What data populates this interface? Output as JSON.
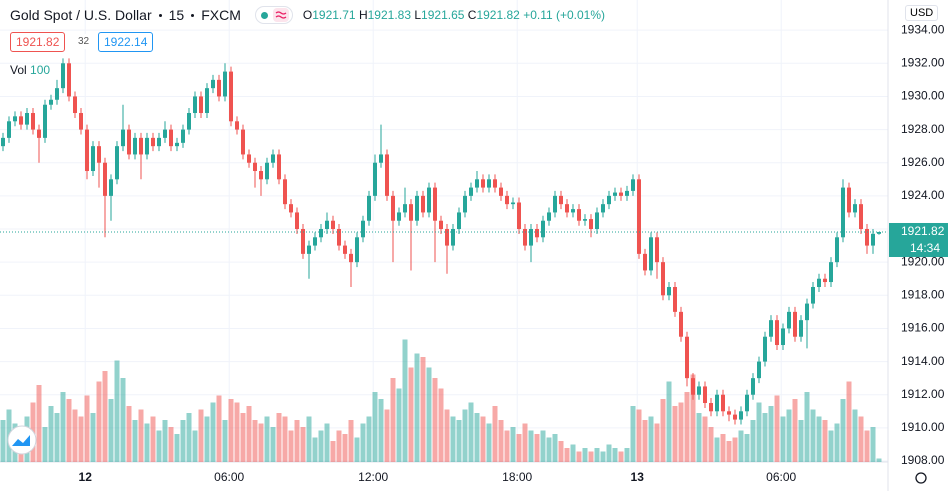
{
  "header": {
    "title": "Gold Spot / U.S. Dollar",
    "interval": "15",
    "source": "FXCM",
    "ohlc_labels": [
      "O",
      "H",
      "L",
      "C"
    ],
    "change": "+0.11 (+0.01%)",
    "spread": "32",
    "buy": 1922.14,
    "volume_label": "Vol",
    "currency": "USD",
    "countdown": "14:34"
  },
  "chart_data": {
    "type": "candlestick",
    "up_color": "#26a69a",
    "down_color": "#ef5350",
    "xlim": [
      -0.5,
      147
    ],
    "xticks": [
      {
        "value": 13.7,
        "label": "12"
      },
      {
        "value": 37.7,
        "label": "06:00"
      },
      {
        "value": 61.7,
        "label": "12:00"
      },
      {
        "value": 85.7,
        "label": "18:00"
      },
      {
        "value": 105.7,
        "label": "13"
      },
      {
        "value": 129.7,
        "label": "06:00"
      }
    ],
    "ylim": [
      1907.94,
      1935.82
    ],
    "yticks": [
      {
        "value": 1908,
        "label": "1908.00"
      },
      {
        "value": 1910,
        "label": "1910.00"
      },
      {
        "value": 1912,
        "label": "1912.00"
      },
      {
        "value": 1914,
        "label": "1914.00"
      },
      {
        "value": 1916,
        "label": "1916.00"
      },
      {
        "value": 1918,
        "label": "1918.00"
      },
      {
        "value": 1920,
        "label": "1920.00"
      },
      {
        "value": 1922,
        "label": "1922.00"
      },
      {
        "value": 1924,
        "label": "1924.00"
      },
      {
        "value": 1926,
        "label": "1926.00"
      },
      {
        "value": 1928,
        "label": "1928.00"
      },
      {
        "value": 1930,
        "label": "1930.00"
      },
      {
        "value": 1932,
        "label": "1932.00"
      },
      {
        "value": 1934,
        "label": "1934.00"
      }
    ],
    "grid": true,
    "vlim": [
      0,
      4000
    ],
    "open": [
      1927.0,
      1927.5,
      1928.5,
      1928.8,
      1928.3,
      1929.0,
      1928.0,
      1927.5,
      1929.5,
      1929.8,
      1930.5,
      1932.0,
      1930.0,
      1929.0,
      1928.0,
      1925.5,
      1927.0,
      1926.0,
      1924.0,
      1925.0,
      1927.0,
      1928.0,
      1926.5,
      1927.5,
      1926.5,
      1927.5,
      1927.0,
      1927.5,
      1928.0,
      1927.0,
      1927.2,
      1928.0,
      1929.0,
      1930.0,
      1929.0,
      1930.5,
      1931.0,
      1930.0,
      1931.5,
      1928.5,
      1928.0,
      1926.5,
      1926.0,
      1925.5,
      1925.0,
      1926.0,
      1926.5,
      1925.0,
      1923.5,
      1923.0,
      1922.0,
      1920.5,
      1921.0,
      1921.5,
      1922.0,
      1922.5,
      1922.0,
      1921.0,
      1920.5,
      1920.0,
      1921.5,
      1922.5,
      1924.0,
      1926.0,
      1926.5,
      1924.0,
      1922.5,
      1923.0,
      1923.5,
      1922.5,
      1924.0,
      1923.0,
      1924.5,
      1922.5,
      1922.0,
      1921.0,
      1922.0,
      1923.0,
      1924.0,
      1924.5,
      1925.0,
      1924.5,
      1925.0,
      1924.5,
      1924.0,
      1923.5,
      1923.6,
      1922.0,
      1921.0,
      1922.0,
      1921.5,
      1922.5,
      1923.0,
      1924.0,
      1923.5,
      1923.0,
      1923.2,
      1922.5,
      1922.6,
      1922.0,
      1923.0,
      1923.5,
      1924.0,
      1924.2,
      1924.0,
      1924.3,
      1925.0,
      1920.5,
      1919.5,
      1921.5,
      1920.0,
      1918.0,
      1918.5,
      1917.0,
      1915.5,
      1913.0,
      1912.0,
      1912.5,
      1911.5,
      1911.0,
      1912.0,
      1911.0,
      1910.8,
      1910.5,
      1911.0,
      1912.0,
      1913.0,
      1914.0,
      1915.5,
      1916.5,
      1915.0,
      1916.0,
      1917.0,
      1915.5,
      1916.5,
      1917.5,
      1918.5,
      1919.0,
      1918.8,
      1920.0,
      1921.5,
      1924.5,
      1923.0,
      1923.5,
      1922.0,
      1921.0,
      1921.71
    ],
    "high": [
      1927.8,
      1928.8,
      1929.1,
      1929.1,
      1929.3,
      1929.3,
      1928.3,
      1929.8,
      1930.1,
      1931.0,
      1932.3,
      1932.3,
      1930.3,
      1929.3,
      1928.3,
      1927.3,
      1927.3,
      1926.3,
      1925.3,
      1927.3,
      1929.5,
      1928.3,
      1927.8,
      1927.8,
      1927.8,
      1927.8,
      1927.8,
      1928.5,
      1928.3,
      1927.5,
      1928.3,
      1929.3,
      1930.3,
      1930.3,
      1930.8,
      1931.3,
      1931.3,
      1932.0,
      1931.8,
      1928.8,
      1928.3,
      1926.8,
      1926.3,
      1925.8,
      1926.3,
      1926.8,
      1926.8,
      1925.3,
      1923.8,
      1923.3,
      1922.3,
      1921.3,
      1921.8,
      1922.3,
      1923.0,
      1922.8,
      1922.3,
      1921.3,
      1920.8,
      1921.8,
      1922.8,
      1924.3,
      1926.5,
      1928.3,
      1926.8,
      1924.3,
      1923.3,
      1924.5,
      1923.8,
      1924.3,
      1924.3,
      1924.8,
      1924.8,
      1922.8,
      1922.3,
      1922.3,
      1923.3,
      1924.3,
      1924.8,
      1925.5,
      1925.3,
      1925.3,
      1925.3,
      1924.8,
      1924.3,
      1923.9,
      1923.9,
      1922.3,
      1922.3,
      1922.3,
      1922.8,
      1923.3,
      1924.3,
      1924.3,
      1923.8,
      1923.5,
      1923.5,
      1922.9,
      1922.9,
      1923.3,
      1923.8,
      1924.3,
      1924.5,
      1924.5,
      1924.6,
      1925.3,
      1925.3,
      1920.8,
      1921.8,
      1921.8,
      1920.3,
      1918.8,
      1918.8,
      1917.3,
      1915.8,
      1913.3,
      1912.8,
      1912.8,
      1911.8,
      1912.3,
      1912.3,
      1911.3,
      1911.1,
      1911.3,
      1912.3,
      1913.3,
      1914.3,
      1915.8,
      1916.8,
      1916.8,
      1916.3,
      1917.3,
      1917.3,
      1916.8,
      1917.8,
      1918.8,
      1919.3,
      1919.3,
      1920.3,
      1921.8,
      1925.0,
      1924.8,
      1923.8,
      1923.8,
      1922.3,
      1922.0,
      1921.83
    ],
    "low": [
      1926.7,
      1927.2,
      1928.2,
      1928.0,
      1928.0,
      1927.7,
      1926.0,
      1927.2,
      1929.2,
      1929.5,
      1930.2,
      1929.7,
      1928.7,
      1927.7,
      1925.0,
      1925.2,
      1924.5,
      1921.5,
      1922.5,
      1924.7,
      1926.7,
      1926.2,
      1926.2,
      1925.0,
      1926.2,
      1926.7,
      1926.7,
      1927.2,
      1926.7,
      1926.7,
      1926.9,
      1927.7,
      1928.7,
      1928.7,
      1928.7,
      1930.2,
      1929.7,
      1929.7,
      1928.2,
      1927.7,
      1926.2,
      1925.7,
      1924.5,
      1924.0,
      1924.7,
      1925.7,
      1924.7,
      1923.2,
      1922.7,
      1921.7,
      1920.2,
      1919.0,
      1920.7,
      1921.2,
      1921.7,
      1921.7,
      1920.7,
      1920.2,
      1918.5,
      1919.7,
      1921.2,
      1922.2,
      1923.7,
      1925.7,
      1923.7,
      1920.0,
      1922.2,
      1922.7,
      1919.5,
      1922.2,
      1922.7,
      1922.7,
      1920.0,
      1921.7,
      1919.3,
      1920.7,
      1921.7,
      1922.7,
      1923.7,
      1924.2,
      1924.2,
      1924.2,
      1924.2,
      1923.7,
      1923.2,
      1923.2,
      1921.7,
      1920.7,
      1920.0,
      1921.2,
      1921.2,
      1922.2,
      1922.7,
      1923.2,
      1922.7,
      1922.7,
      1922.2,
      1922.2,
      1921.5,
      1921.7,
      1922.7,
      1923.2,
      1923.7,
      1923.7,
      1923.7,
      1924.0,
      1920.2,
      1919.2,
      1919.2,
      1919.0,
      1917.7,
      1917.7,
      1916.7,
      1915.2,
      1912.5,
      1911.7,
      1911.7,
      1911.2,
      1910.7,
      1910.7,
      1910.7,
      1910.4,
      1910.2,
      1910.2,
      1910.7,
      1911.7,
      1912.7,
      1913.7,
      1915.2,
      1914.7,
      1914.7,
      1915.7,
      1915.2,
      1915.2,
      1914.8,
      1917.2,
      1918.2,
      1918.5,
      1918.5,
      1919.7,
      1921.2,
      1922.7,
      1922.7,
      1921.7,
      1920.5,
      1920.5,
      1921.65
    ],
    "close": [
      1927.5,
      1928.5,
      1928.8,
      1928.3,
      1929.0,
      1928.0,
      1927.5,
      1929.5,
      1929.8,
      1930.5,
      1932.0,
      1930.0,
      1929.0,
      1928.0,
      1925.5,
      1927.0,
      1926.0,
      1924.0,
      1925.0,
      1927.0,
      1928.0,
      1926.5,
      1927.5,
      1926.5,
      1927.5,
      1927.0,
      1927.5,
      1928.0,
      1927.0,
      1927.2,
      1928.0,
      1929.0,
      1930.0,
      1929.0,
      1930.5,
      1931.0,
      1930.0,
      1931.5,
      1928.5,
      1928.0,
      1926.5,
      1926.0,
      1925.5,
      1925.0,
      1926.0,
      1926.5,
      1925.0,
      1923.5,
      1923.0,
      1922.0,
      1920.5,
      1921.0,
      1921.5,
      1922.0,
      1922.5,
      1922.0,
      1921.0,
      1920.5,
      1920.0,
      1921.5,
      1922.5,
      1924.0,
      1926.0,
      1926.5,
      1924.0,
      1922.5,
      1923.0,
      1923.5,
      1922.5,
      1924.0,
      1923.0,
      1924.5,
      1922.5,
      1922.0,
      1921.0,
      1922.0,
      1923.0,
      1924.0,
      1924.5,
      1925.0,
      1924.5,
      1925.0,
      1924.5,
      1924.0,
      1923.5,
      1923.6,
      1922.0,
      1921.0,
      1922.0,
      1921.5,
      1922.5,
      1923.0,
      1924.0,
      1923.5,
      1923.0,
      1923.2,
      1922.5,
      1922.6,
      1922.0,
      1923.0,
      1923.5,
      1924.0,
      1924.2,
      1924.0,
      1924.3,
      1925.0,
      1920.5,
      1919.5,
      1921.5,
      1920.0,
      1918.0,
      1918.5,
      1917.0,
      1915.5,
      1913.0,
      1912.0,
      1912.5,
      1911.5,
      1911.0,
      1912.0,
      1911.0,
      1910.8,
      1910.5,
      1911.0,
      1912.0,
      1913.0,
      1914.0,
      1915.5,
      1916.5,
      1915.0,
      1916.0,
      1917.0,
      1915.5,
      1916.5,
      1917.5,
      1918.5,
      1919.0,
      1918.8,
      1920.0,
      1921.5,
      1924.5,
      1923.0,
      1923.5,
      1922.0,
      1921.0,
      1921.71,
      1921.82
    ],
    "volumes": [
      1200,
      1500,
      1100,
      900,
      1300,
      1700,
      2200,
      1000,
      1600,
      1400,
      2000,
      1800,
      1500,
      1300,
      1900,
      1400,
      2300,
      2600,
      1800,
      2900,
      2400,
      1600,
      1200,
      1500,
      1100,
      1300,
      900,
      1200,
      1000,
      800,
      1200,
      1400,
      900,
      1500,
      1300,
      1700,
      1900,
      1200,
      1800,
      1700,
      1400,
      1600,
      1200,
      1100,
      1300,
      1000,
      1400,
      1300,
      900,
      1200,
      1000,
      1300,
      700,
      900,
      1100,
      600,
      900,
      800,
      1200,
      700,
      1100,
      1300,
      2000,
      1800,
      1500,
      2400,
      2100,
      3500,
      2700,
      3100,
      3000,
      2700,
      2400,
      2100,
      1500,
      1300,
      1200,
      1500,
      1700,
      1400,
      1300,
      1100,
      1600,
      1200,
      900,
      1000,
      800,
      1100,
      900,
      800,
      900,
      700,
      800,
      600,
      400,
      500,
      300,
      400,
      300,
      400,
      300,
      500,
      400,
      300,
      400,
      1600,
      1500,
      1200,
      1300,
      1100,
      1800,
      2300,
      1600,
      1700,
      2000,
      2500,
      1400,
      1300,
      1000,
      700,
      800,
      600,
      700,
      900,
      800,
      1200,
      1700,
      1400,
      1600,
      1900,
      1300,
      1500,
      1800,
      1200,
      2000,
      1500,
      1300,
      1200,
      900,
      1100,
      1800,
      2300,
      1500,
      1300,
      900,
      1000,
      100
    ]
  }
}
